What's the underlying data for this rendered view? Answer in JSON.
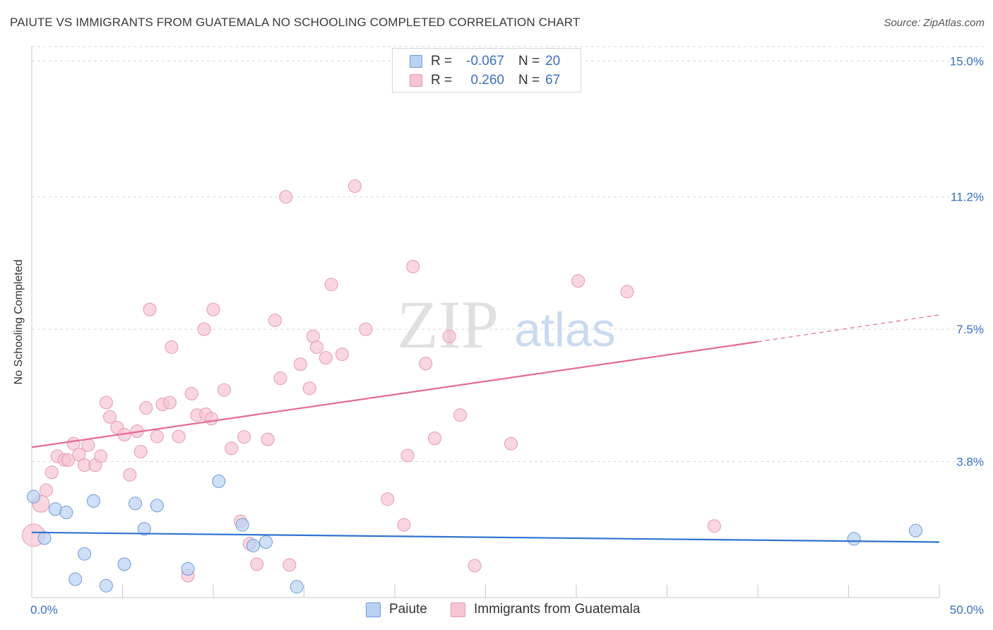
{
  "title": "PAIUTE VS IMMIGRANTS FROM GUATEMALA NO SCHOOLING COMPLETED CORRELATION CHART",
  "source": "Source: ZipAtlas.com",
  "watermark": {
    "zip": "ZIP",
    "atlas": "atlas"
  },
  "colors": {
    "blue_fill": "#b9d2f3",
    "blue_stroke": "#6f9ad8",
    "blue_line": "#2f74cf",
    "pink_fill": "#f7c4d3",
    "pink_stroke": "#e79ab2",
    "pink_line": "#e56a93",
    "tick_text": "#3a6fc4",
    "grid": "#dadada"
  },
  "legend": {
    "rows": [
      {
        "r_label": "R =",
        "r_value": "-0.067",
        "n_label": "N =",
        "n_value": "20"
      },
      {
        "r_label": "R =",
        "r_value": "0.260",
        "n_label": "N =",
        "n_value": "67"
      }
    ]
  },
  "bottom_legend": [
    "Paiute",
    "Immigrants from Guatemala"
  ],
  "chart_data": {
    "type": "scatter",
    "title": "PAIUTE VS IMMIGRANTS FROM GUATEMALA NO SCHOOLING COMPLETED CORRELATION CHART",
    "xlabel": "",
    "ylabel": "No Schooling Completed",
    "xlim": [
      0,
      50
    ],
    "ylim": [
      0,
      15.4
    ],
    "x_tick_labels": [
      "0.0%",
      "50.0%"
    ],
    "y_ticks": [
      3.8,
      7.5,
      11.2,
      15.0
    ],
    "y_tick_labels": [
      "3.8%",
      "7.5%",
      "11.2%",
      "15.0%"
    ],
    "grid": true,
    "series": [
      {
        "name": "Paiute",
        "color": "blue",
        "trend": {
          "x0": 0,
          "y0": 1.82,
          "x1": 50,
          "y1": 1.55
        },
        "points": [
          [
            0.1,
            2.82
          ],
          [
            0.7,
            1.66
          ],
          [
            1.3,
            2.47
          ],
          [
            1.9,
            2.38
          ],
          [
            2.4,
            0.51
          ],
          [
            2.9,
            1.22
          ],
          [
            3.4,
            2.7
          ],
          [
            4.1,
            0.33
          ],
          [
            5.1,
            0.93
          ],
          [
            5.7,
            2.63
          ],
          [
            6.2,
            1.92
          ],
          [
            6.9,
            2.57
          ],
          [
            8.6,
            0.8
          ],
          [
            10.3,
            3.25
          ],
          [
            11.6,
            2.03
          ],
          [
            12.2,
            1.45
          ],
          [
            12.9,
            1.55
          ],
          [
            14.6,
            0.3
          ],
          [
            45.3,
            1.64
          ],
          [
            48.7,
            1.87
          ]
        ]
      },
      {
        "name": "Immigrants from Guatemala",
        "color": "pink",
        "trend": {
          "x0": 0,
          "y0": 4.2,
          "x1": 40,
          "y1": 7.15
        },
        "trend_dashed": {
          "x0": 40,
          "y0": 7.15,
          "x1": 50,
          "y1": 7.9
        },
        "points": [
          [
            0.1,
            1.74
          ],
          [
            0.5,
            2.62
          ],
          [
            0.8,
            3.0
          ],
          [
            1.1,
            3.5
          ],
          [
            1.4,
            3.95
          ],
          [
            1.8,
            3.85
          ],
          [
            2.0,
            3.84
          ],
          [
            2.3,
            4.3
          ],
          [
            2.6,
            4.0
          ],
          [
            2.9,
            3.7
          ],
          [
            3.1,
            4.26
          ],
          [
            3.5,
            3.7
          ],
          [
            3.8,
            3.95
          ],
          [
            4.1,
            5.45
          ],
          [
            4.3,
            5.05
          ],
          [
            4.7,
            4.75
          ],
          [
            5.1,
            4.55
          ],
          [
            5.4,
            3.43
          ],
          [
            5.8,
            4.65
          ],
          [
            6.0,
            4.08
          ],
          [
            6.3,
            5.3
          ],
          [
            6.5,
            8.05
          ],
          [
            6.9,
            4.5
          ],
          [
            7.2,
            5.4
          ],
          [
            7.6,
            5.45
          ],
          [
            7.7,
            7.0
          ],
          [
            8.1,
            4.5
          ],
          [
            8.6,
            0.61
          ],
          [
            8.8,
            5.7
          ],
          [
            9.1,
            5.1
          ],
          [
            9.5,
            7.5
          ],
          [
            9.6,
            5.12
          ],
          [
            9.9,
            5.0
          ],
          [
            10.0,
            8.05
          ],
          [
            10.6,
            5.8
          ],
          [
            11.0,
            4.17
          ],
          [
            11.5,
            2.13
          ],
          [
            11.7,
            4.49
          ],
          [
            12.0,
            1.5
          ],
          [
            12.4,
            0.93
          ],
          [
            13.0,
            4.42
          ],
          [
            13.4,
            7.75
          ],
          [
            13.7,
            6.13
          ],
          [
            14.0,
            11.2
          ],
          [
            14.2,
            0.91
          ],
          [
            14.8,
            6.52
          ],
          [
            15.3,
            5.85
          ],
          [
            15.5,
            7.3
          ],
          [
            15.7,
            7.0
          ],
          [
            16.2,
            6.7
          ],
          [
            16.5,
            8.75
          ],
          [
            17.1,
            6.8
          ],
          [
            17.8,
            11.5
          ],
          [
            18.4,
            7.5
          ],
          [
            19.6,
            2.75
          ],
          [
            20.5,
            2.03
          ],
          [
            20.7,
            3.97
          ],
          [
            21.0,
            9.25
          ],
          [
            21.7,
            6.54
          ],
          [
            22.2,
            4.45
          ],
          [
            23.0,
            7.3
          ],
          [
            23.6,
            5.1
          ],
          [
            24.4,
            0.89
          ],
          [
            26.4,
            4.3
          ],
          [
            30.1,
            8.85
          ],
          [
            32.8,
            8.55
          ],
          [
            37.6,
            2.0
          ]
        ]
      }
    ]
  }
}
